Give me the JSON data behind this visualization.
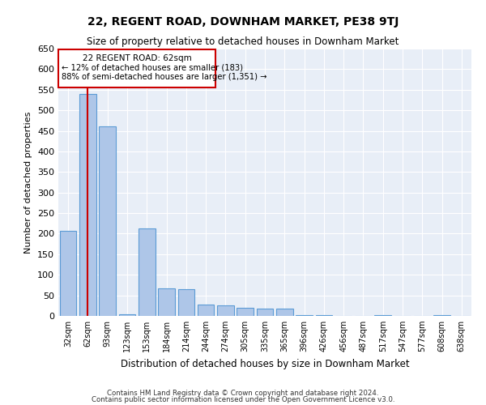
{
  "title": "22, REGENT ROAD, DOWNHAM MARKET, PE38 9TJ",
  "subtitle": "Size of property relative to detached houses in Downham Market",
  "xlabel": "Distribution of detached houses by size in Downham Market",
  "ylabel": "Number of detached properties",
  "footnote1": "Contains HM Land Registry data © Crown copyright and database right 2024.",
  "footnote2": "Contains public sector information licensed under the Open Government Licence v3.0.",
  "categories": [
    "32sqm",
    "62sqm",
    "93sqm",
    "123sqm",
    "153sqm",
    "184sqm",
    "214sqm",
    "244sqm",
    "274sqm",
    "305sqm",
    "335sqm",
    "365sqm",
    "396sqm",
    "426sqm",
    "456sqm",
    "487sqm",
    "517sqm",
    "547sqm",
    "577sqm",
    "608sqm",
    "638sqm"
  ],
  "values": [
    207,
    540,
    460,
    3,
    213,
    66,
    65,
    27,
    25,
    19,
    18,
    18,
    1,
    2,
    0,
    0,
    1,
    0,
    0,
    1,
    0
  ],
  "bar_color": "#aec6e8",
  "bar_edge_color": "#5b9bd5",
  "property_bin_index": 1,
  "annotation_text_line1": "22 REGENT ROAD: 62sqm",
  "annotation_text_line2": "← 12% of detached houses are smaller (183)",
  "annotation_text_line3": "88% of semi-detached houses are larger (1,351) →",
  "marker_color": "#cc0000",
  "annotation_box_color": "#cc0000",
  "bg_color": "#e8eef7",
  "ylim": [
    0,
    650
  ],
  "yticks": [
    0,
    50,
    100,
    150,
    200,
    250,
    300,
    350,
    400,
    450,
    500,
    550,
    600,
    650
  ]
}
